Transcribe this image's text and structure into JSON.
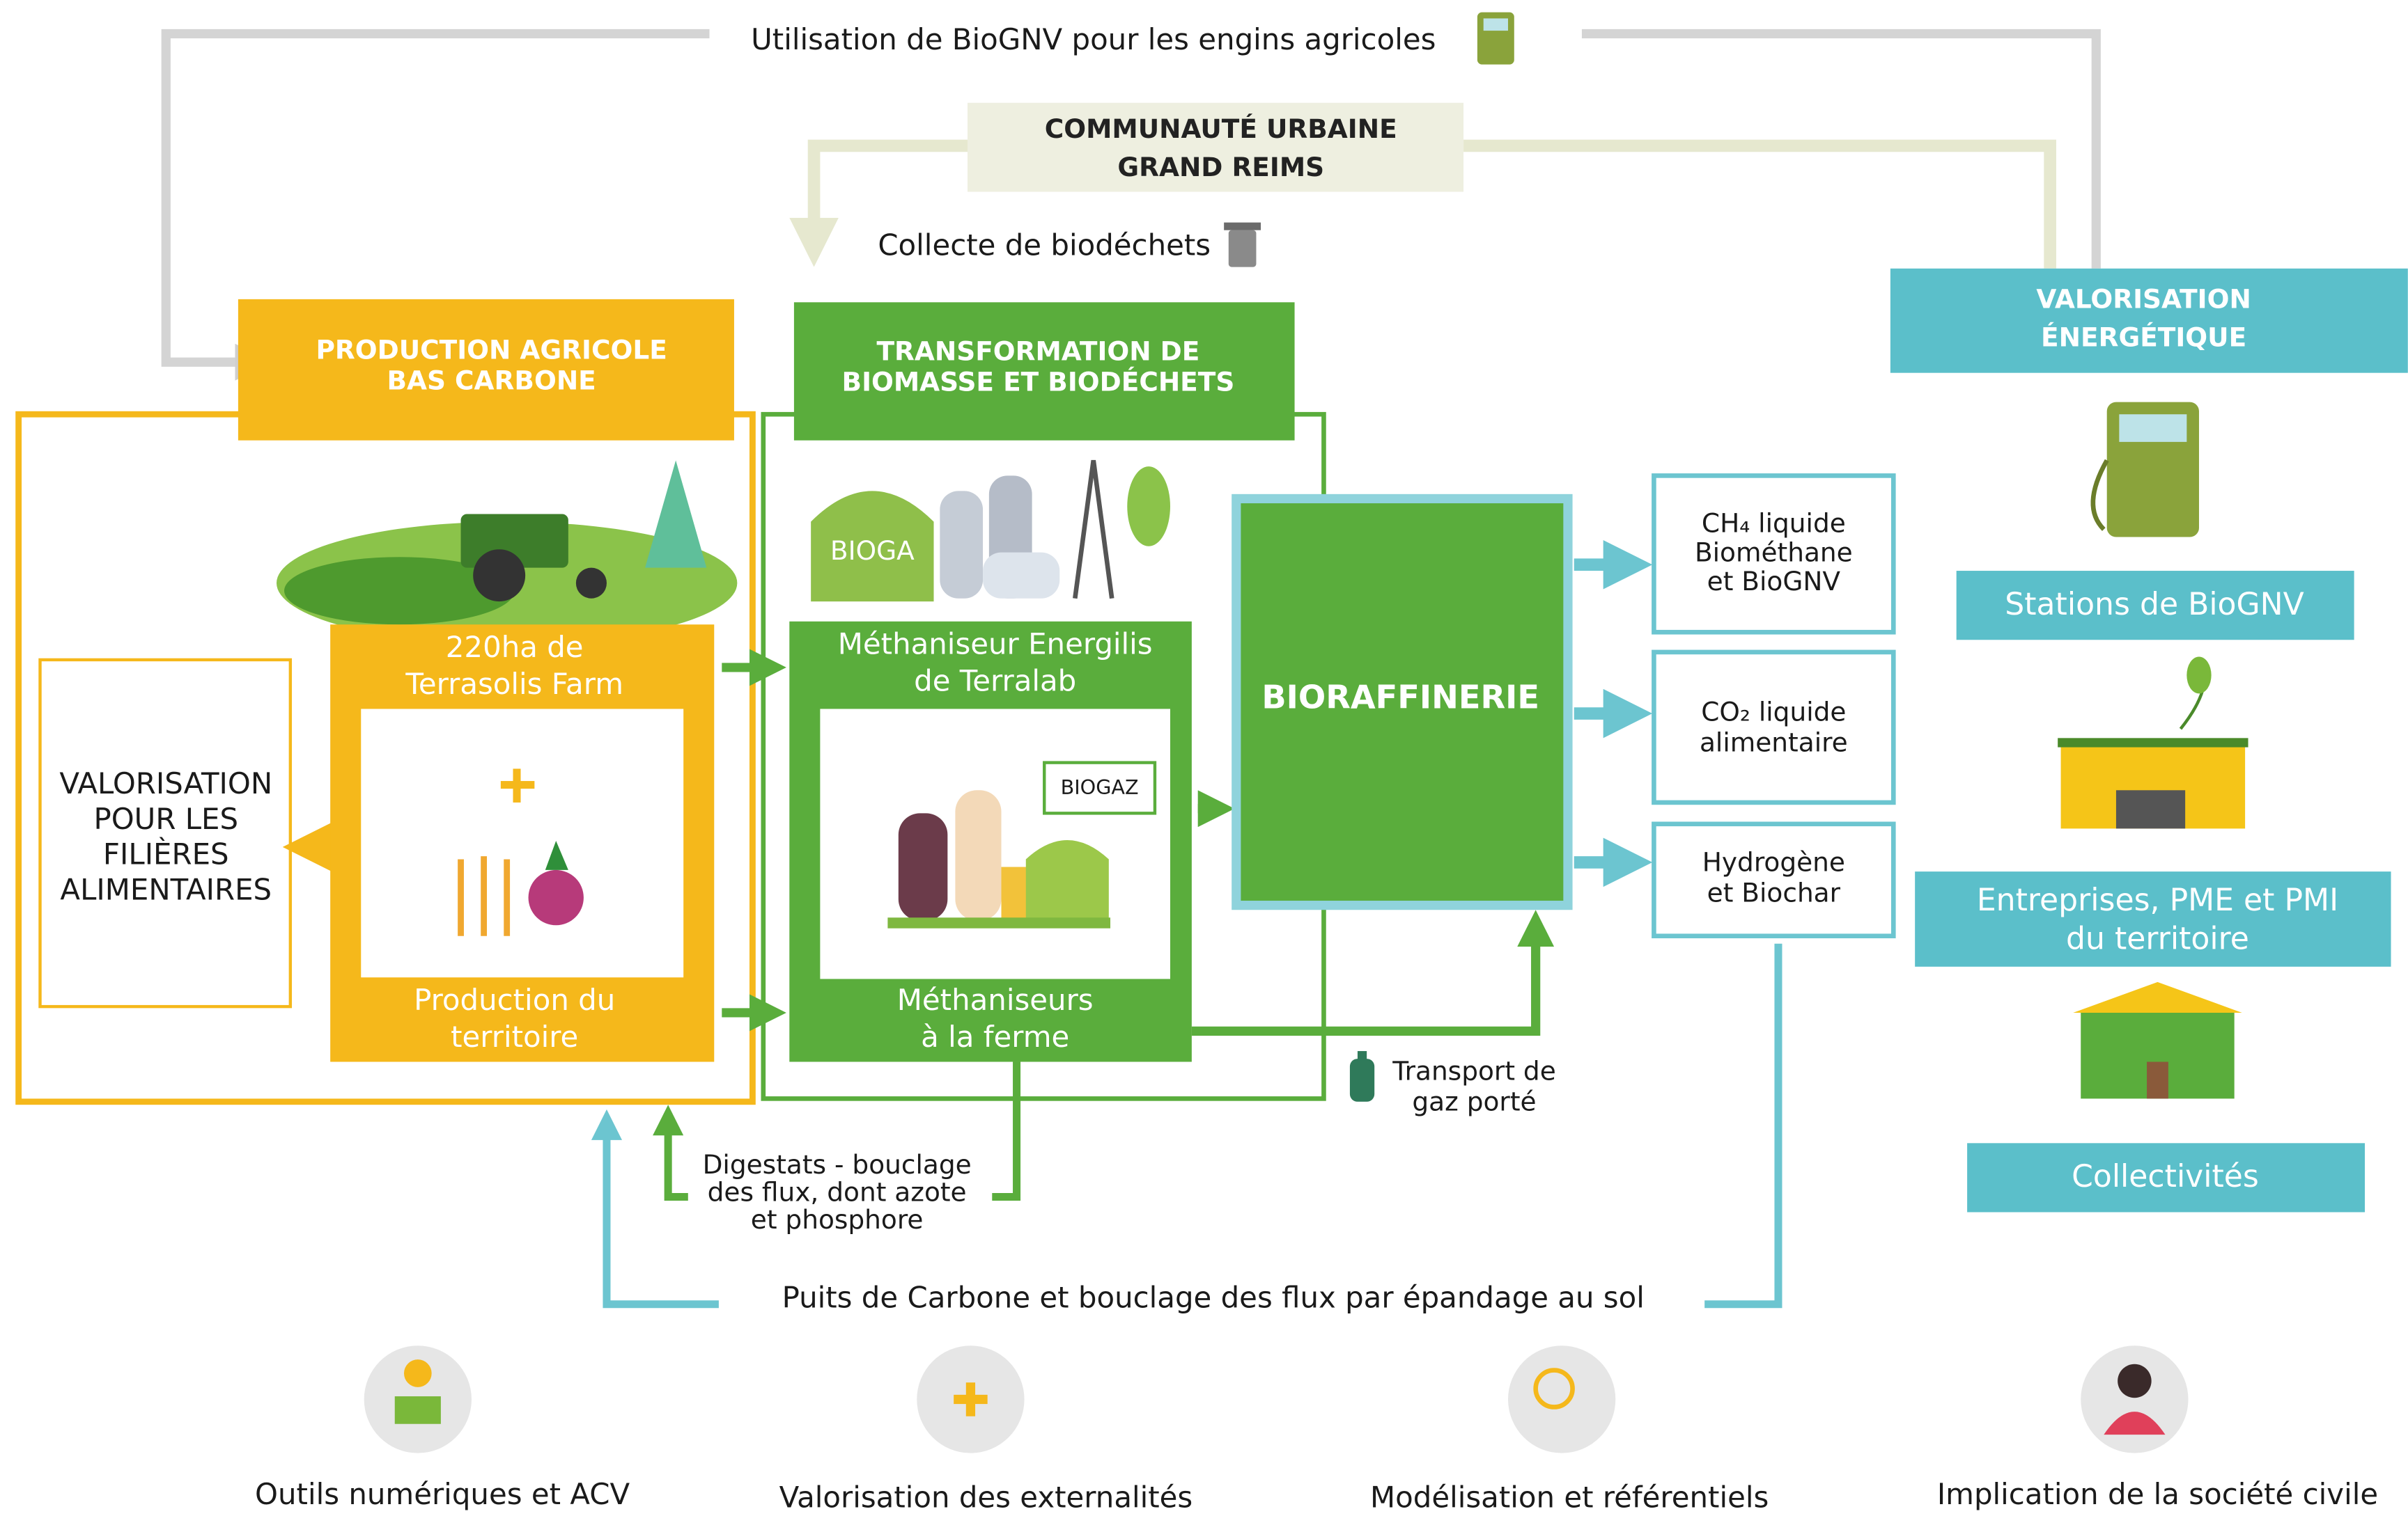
{
  "flows": {
    "agricultural_fuel": "Utilisation de BioGNV pour les engins agricoles",
    "waste_collection": "Collecte de biodéchets",
    "gas_transport": [
      "Transport de",
      "gaz porté"
    ],
    "digestates": [
      "Digestats - bouclage",
      "des flux, dont azote",
      "et phosphore"
    ],
    "carbon_sink": "Puits de Carbone et bouclage des flux par épandage au sol"
  },
  "partner": [
    "COMMUNAUTÉ URBAINE",
    "GRAND REIMS"
  ],
  "production": {
    "header": [
      "PRODUCTION AGRICOLE",
      "BAS CARBONE"
    ],
    "farm": [
      "220ha de",
      "Terrasolis Farm"
    ],
    "territory": [
      "Production du",
      "territoire"
    ],
    "food_valorisation": [
      "VALORISATION",
      "POUR LES",
      "FILIÈRES",
      "ALIMENTAIRES"
    ]
  },
  "transformation": {
    "header": [
      "TRANSFORMATION DE",
      "BIOMASSE ET BIODÉCHETS"
    ],
    "energilis": [
      "Méthaniseur Energilis",
      "de Terralab"
    ],
    "biogas_tank_label": "BIOGA",
    "biogaz_label": "BIOGAZ",
    "farm_digesters": [
      "Méthaniseurs",
      "à la ferme"
    ]
  },
  "biorefinery": "BIORAFFINERIE",
  "outputs": [
    [
      "CH₄ liquide",
      "Biométhane",
      "et BioGNV"
    ],
    [
      "CO₂ liquide",
      "alimentaire"
    ],
    [
      "Hydrogène",
      "et Biochar"
    ]
  ],
  "energy": {
    "header": [
      "VALORISATION",
      "ÉNERGÉTIQUE"
    ],
    "users": [
      [
        "Stations de BioGNV"
      ],
      [
        "Entreprises, PME et PMI",
        "du territoire"
      ],
      [
        "Collectivités"
      ]
    ]
  },
  "pillars": [
    "Outils numériques et ACV",
    "Valorisation des externalités",
    "Modélisation et référentiels",
    "Implication de la société civile"
  ]
}
